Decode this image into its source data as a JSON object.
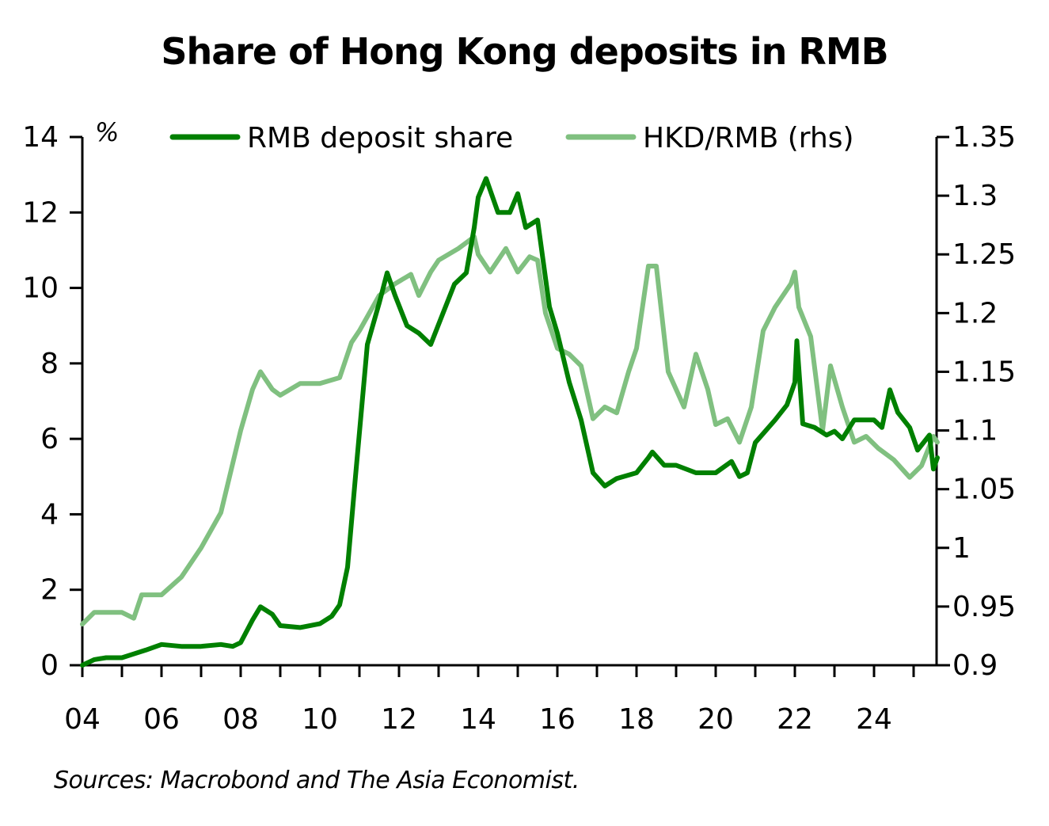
{
  "title": "Share of Hong Kong deposits in RMB",
  "source": "Sources: Macrobond and The Asia Economist.",
  "chart_data": {
    "type": "line",
    "title": "Share of Hong Kong deposits in RMB",
    "xlabel": "",
    "ylabel": "%",
    "ylabel_right": "",
    "x_tick_labels": [
      "04",
      "06",
      "08",
      "10",
      "12",
      "14",
      "16",
      "18",
      "20",
      "22",
      "24"
    ],
    "xlim": [
      2004,
      2025.6
    ],
    "ylim": [
      0,
      14
    ],
    "ylim_right": [
      0.9,
      1.35
    ],
    "y_ticks": [
      0,
      2,
      4,
      6,
      8,
      10,
      12,
      14
    ],
    "y_ticks_right": [
      "0.9",
      "0.95",
      "1",
      "1.05",
      "1.1",
      "1.15",
      "1.2",
      "1.25",
      "1.3",
      "1.35"
    ],
    "grid": false,
    "legend_position": "top",
    "series": [
      {
        "name": "RMB deposit share",
        "axis": "left",
        "color": "#008000",
        "x": [
          2004.0,
          2004.3,
          2004.6,
          2005.0,
          2005.3,
          2005.6,
          2006.0,
          2006.5,
          2007.0,
          2007.5,
          2007.8,
          2008.0,
          2008.3,
          2008.5,
          2008.8,
          2009.0,
          2009.5,
          2010.0,
          2010.3,
          2010.5,
          2010.7,
          2010.9,
          2011.2,
          2011.5,
          2011.7,
          2011.9,
          2012.2,
          2012.5,
          2012.8,
          2013.1,
          2013.4,
          2013.7,
          2013.9,
          2014.0,
          2014.2,
          2014.5,
          2014.8,
          2015.0,
          2015.2,
          2015.5,
          2015.8,
          2016.0,
          2016.3,
          2016.6,
          2016.9,
          2017.2,
          2017.5,
          2018.0,
          2018.3,
          2018.4,
          2018.7,
          2019.0,
          2019.5,
          2020.0,
          2020.4,
          2020.6,
          2020.8,
          2021.0,
          2021.5,
          2021.8,
          2022.0,
          2022.05,
          2022.2,
          2022.5,
          2022.8,
          2023.0,
          2023.2,
          2023.5,
          2023.8,
          2024.0,
          2024.2,
          2024.4,
          2024.6,
          2024.9,
          2025.1,
          2025.4,
          2025.5,
          2025.6
        ],
        "values": [
          0.0,
          0.15,
          0.2,
          0.2,
          0.3,
          0.4,
          0.55,
          0.5,
          0.5,
          0.55,
          0.5,
          0.6,
          1.2,
          1.55,
          1.35,
          1.05,
          1.0,
          1.1,
          1.3,
          1.6,
          2.6,
          5.0,
          8.5,
          9.6,
          10.4,
          9.8,
          9.0,
          8.8,
          8.5,
          9.3,
          10.1,
          10.4,
          11.6,
          12.4,
          12.9,
          12.0,
          12.0,
          12.5,
          11.6,
          11.8,
          9.5,
          8.8,
          7.5,
          6.5,
          5.1,
          4.75,
          4.95,
          5.1,
          5.5,
          5.65,
          5.3,
          5.3,
          5.1,
          5.1,
          5.4,
          5.0,
          5.1,
          5.9,
          6.5,
          6.9,
          7.5,
          8.6,
          6.4,
          6.3,
          6.1,
          6.2,
          6.0,
          6.5,
          6.5,
          6.5,
          6.3,
          7.3,
          6.7,
          6.3,
          5.7,
          6.1,
          5.2,
          5.5
        ]
      },
      {
        "name": "HKD/RMB (rhs)",
        "axis": "right",
        "color": "#80c080",
        "x": [
          2004.0,
          2004.3,
          2005.0,
          2005.3,
          2005.5,
          2006.0,
          2006.5,
          2007.0,
          2007.5,
          2008.0,
          2008.3,
          2008.5,
          2008.8,
          2009.0,
          2009.5,
          2010.0,
          2010.5,
          2010.8,
          2011.0,
          2011.5,
          2011.9,
          2012.3,
          2012.5,
          2012.8,
          2013.0,
          2013.5,
          2013.9,
          2014.0,
          2014.3,
          2014.7,
          2015.0,
          2015.3,
          2015.5,
          2015.7,
          2016.0,
          2016.3,
          2016.6,
          2016.9,
          2017.2,
          2017.5,
          2017.8,
          2018.0,
          2018.3,
          2018.5,
          2018.8,
          2019.2,
          2019.5,
          2019.8,
          2020.0,
          2020.3,
          2020.6,
          2020.9,
          2021.2,
          2021.5,
          2021.9,
          2022.0,
          2022.1,
          2022.4,
          2022.7,
          2022.9,
          2023.2,
          2023.5,
          2023.8,
          2024.1,
          2024.5,
          2024.9,
          2025.2,
          2025.5,
          2025.6
        ],
        "values": [
          0.935,
          0.945,
          0.945,
          0.94,
          0.96,
          0.96,
          0.975,
          1.0,
          1.03,
          1.1,
          1.135,
          1.15,
          1.135,
          1.13,
          1.14,
          1.14,
          1.145,
          1.175,
          1.185,
          1.215,
          1.225,
          1.233,
          1.215,
          1.235,
          1.245,
          1.255,
          1.265,
          1.25,
          1.235,
          1.255,
          1.235,
          1.248,
          1.245,
          1.2,
          1.17,
          1.165,
          1.155,
          1.11,
          1.12,
          1.115,
          1.15,
          1.17,
          1.24,
          1.24,
          1.15,
          1.12,
          1.165,
          1.135,
          1.105,
          1.11,
          1.09,
          1.12,
          1.185,
          1.205,
          1.225,
          1.235,
          1.205,
          1.18,
          1.1,
          1.155,
          1.12,
          1.09,
          1.095,
          1.085,
          1.075,
          1.06,
          1.07,
          1.095,
          1.09
        ]
      }
    ]
  },
  "legend": {
    "items": [
      {
        "label": "RMB deposit share",
        "color": "#008000"
      },
      {
        "label": "HKD/RMB (rhs)",
        "color": "#80c080"
      }
    ]
  },
  "axes": {
    "left_unit": "%"
  }
}
